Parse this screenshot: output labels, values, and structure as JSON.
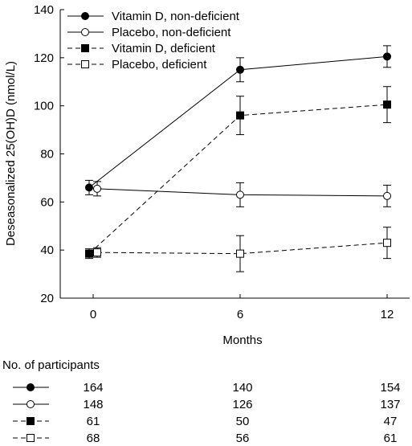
{
  "chart_data": {
    "type": "line",
    "title": "",
    "xlabel": "Months",
    "ylabel": "Deseasonalized 25(OH)D (nmol/L)",
    "x": [
      0,
      6,
      12
    ],
    "x_tick_labels": [
      "0",
      "6",
      "12"
    ],
    "ylim": [
      20,
      140
    ],
    "y_ticks": [
      20,
      40,
      60,
      80,
      100,
      120,
      140
    ],
    "y_tick_labels": [
      "20",
      "40",
      "60",
      "80",
      "100",
      "120",
      "140"
    ],
    "legend_placement": "top-left",
    "grid": false,
    "series": [
      {
        "name": "Vitamin D, non-deficient",
        "marker": "filled-circle",
        "line": "solid",
        "values": [
          66,
          115,
          120.5
        ],
        "errors": [
          3,
          5,
          4.5
        ]
      },
      {
        "name": "Placebo, non-deficient",
        "marker": "open-circle",
        "line": "solid",
        "values": [
          65.5,
          63,
          62.5
        ],
        "errors": [
          3,
          5,
          4.5
        ]
      },
      {
        "name": "Vitamin D, deficient",
        "marker": "filled-square",
        "line": "dashed",
        "values": [
          38.5,
          96,
          100.5
        ],
        "errors": [
          2,
          8,
          7.5
        ]
      },
      {
        "name": "Placebo, deficient",
        "marker": "open-square",
        "line": "dashed",
        "values": [
          39,
          38.5,
          43
        ],
        "errors": [
          2,
          7.5,
          6.5
        ]
      }
    ]
  },
  "participants": {
    "title": "No. of participants",
    "rows": [
      {
        "values": [
          "164",
          "140",
          "154"
        ]
      },
      {
        "values": [
          "148",
          "126",
          "137"
        ]
      },
      {
        "values": [
          "61",
          "50",
          "47"
        ]
      },
      {
        "values": [
          "68",
          "56",
          "61"
        ]
      }
    ]
  }
}
